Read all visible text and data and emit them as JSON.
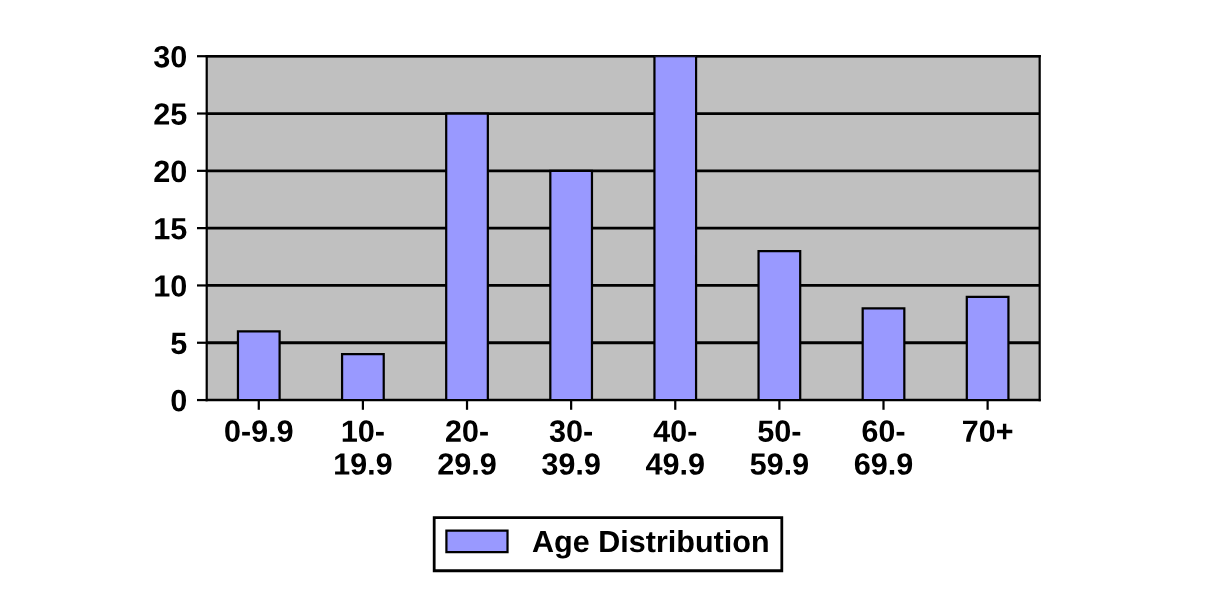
{
  "chart_data": {
    "type": "bar",
    "categories": [
      "0-9.9",
      "10-\n19.9",
      "20-\n29.9",
      "30-\n39.9",
      "40-\n49.9",
      "50-\n59.9",
      "60-\n69.9",
      "70+"
    ],
    "series": [
      {
        "name": "Age Distribution",
        "color": "#9999ff",
        "values": [
          6,
          4,
          25,
          20,
          30,
          13,
          8,
          9
        ]
      }
    ],
    "ylim": [
      0,
      30
    ],
    "yticks": [
      0,
      5,
      10,
      15,
      20,
      25,
      30
    ],
    "grid": "y",
    "legend": "bottom"
  }
}
